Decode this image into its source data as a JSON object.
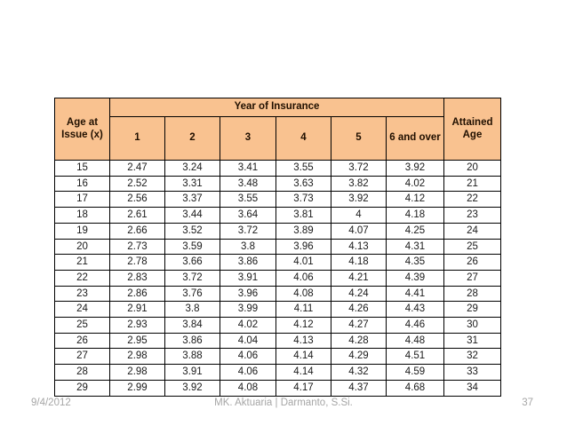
{
  "table": {
    "header": {
      "col_issue_age": "Age at Issue (x)",
      "group_title": "Year of Insurance",
      "year_columns": [
        "1",
        "2",
        "3",
        "4",
        "5",
        "6 and over"
      ],
      "col_attained_age": "Attained Age"
    },
    "rows": [
      {
        "issue_age": "15",
        "values": [
          "2.47",
          "3.24",
          "3.41",
          "3.55",
          "3.72",
          "3.92"
        ],
        "attained_age": "20"
      },
      {
        "issue_age": "16",
        "values": [
          "2.52",
          "3.31",
          "3.48",
          "3.63",
          "3.82",
          "4.02"
        ],
        "attained_age": "21"
      },
      {
        "issue_age": "17",
        "values": [
          "2.56",
          "3.37",
          "3.55",
          "3.73",
          "3.92",
          "4.12"
        ],
        "attained_age": "22"
      },
      {
        "issue_age": "18",
        "values": [
          "2.61",
          "3.44",
          "3.64",
          "3.81",
          "4",
          "4.18"
        ],
        "attained_age": "23"
      },
      {
        "issue_age": "19",
        "values": [
          "2.66",
          "3.52",
          "3.72",
          "3.89",
          "4.07",
          "4.25"
        ],
        "attained_age": "24"
      },
      {
        "issue_age": "20",
        "values": [
          "2.73",
          "3.59",
          "3.8",
          "3.96",
          "4.13",
          "4.31"
        ],
        "attained_age": "25"
      },
      {
        "issue_age": "21",
        "values": [
          "2.78",
          "3.66",
          "3.86",
          "4.01",
          "4.18",
          "4.35"
        ],
        "attained_age": "26"
      },
      {
        "issue_age": "22",
        "values": [
          "2.83",
          "3.72",
          "3.91",
          "4.06",
          "4.21",
          "4.39"
        ],
        "attained_age": "27"
      },
      {
        "issue_age": "23",
        "values": [
          "2.86",
          "3.76",
          "3.96",
          "4.08",
          "4.24",
          "4.41"
        ],
        "attained_age": "28"
      },
      {
        "issue_age": "24",
        "values": [
          "2.91",
          "3.8",
          "3.99",
          "4.11",
          "4.26",
          "4.43"
        ],
        "attained_age": "29"
      },
      {
        "issue_age": "25",
        "values": [
          "2.93",
          "3.84",
          "4.02",
          "4.12",
          "4.27",
          "4.46"
        ],
        "attained_age": "30"
      },
      {
        "issue_age": "26",
        "values": [
          "2.95",
          "3.86",
          "4.04",
          "4.13",
          "4.28",
          "4.48"
        ],
        "attained_age": "31"
      },
      {
        "issue_age": "27",
        "values": [
          "2.98",
          "3.88",
          "4.06",
          "4.14",
          "4.29",
          "4.51"
        ],
        "attained_age": "32"
      },
      {
        "issue_age": "28",
        "values": [
          "2.98",
          "3.91",
          "4.06",
          "4.14",
          "4.32",
          "4.59"
        ],
        "attained_age": "33"
      },
      {
        "issue_age": "29",
        "values": [
          "2.99",
          "3.92",
          "4.08",
          "4.17",
          "4.37",
          "4.68"
        ],
        "attained_age": "34"
      }
    ],
    "colors": {
      "header_fill": "#F9C290",
      "border": "#000000",
      "data_text": "#1a1a1a"
    }
  },
  "footer": {
    "date": "9/4/2012",
    "center": "MK. Aktuaria | Darmanto, S.Si.",
    "page_number": "37",
    "color": "#A6A6A6"
  }
}
